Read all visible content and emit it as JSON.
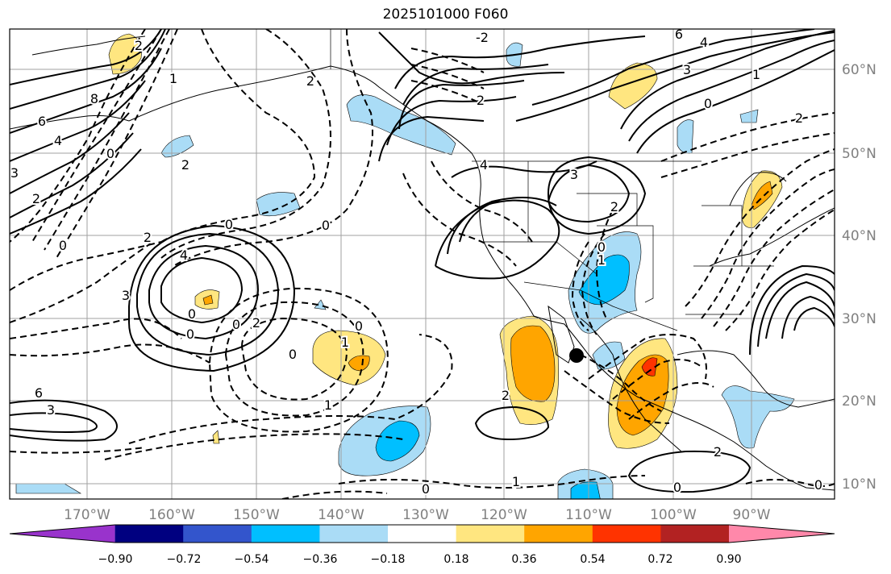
{
  "title": "2025101000 F060",
  "lon_labels": [
    "170°W",
    "160°W",
    "150°W",
    "140°W",
    "130°W",
    "120°W",
    "110°W",
    "100°W",
    "90°W"
  ],
  "lat_labels": [
    "60°N",
    "50°N",
    "40°N",
    "30°N",
    "20°N",
    "10°N"
  ],
  "colorbar": {
    "tick_labels": [
      "−0.90",
      "−0.72",
      "−0.54",
      "−0.36",
      "−0.18",
      "0.18",
      "0.36",
      "0.54",
      "0.72",
      "0.90"
    ],
    "colors": [
      "#9933cc",
      "#000080",
      "#3355cc",
      "#00bfff",
      "#aadcf6",
      "#ffffff",
      "#ffe680",
      "#ffa500",
      "#ff3300",
      "#b22222",
      "#ff88aa"
    ]
  },
  "fill_colors": {
    "light_blue": "#aadcf6",
    "deep_sky": "#00bfff",
    "yellow": "#ffe680",
    "orange": "#ffa500",
    "red_orange": "#ff3300"
  },
  "contour_labels": [
    "-2",
    "2",
    "1",
    "8",
    "6",
    "4",
    "3",
    "2",
    "0",
    "2",
    "2",
    "6",
    "4",
    "3",
    "2",
    "3",
    "0",
    "4",
    "2",
    "6",
    "3",
    "4",
    "0",
    "0",
    "2",
    "3",
    "1",
    "0",
    "0",
    "1",
    "2",
    "1",
    "0",
    "2",
    "2",
    "0",
    "1",
    "0",
    "0",
    "0",
    "1",
    "0",
    "0",
    "2",
    "0"
  ]
}
